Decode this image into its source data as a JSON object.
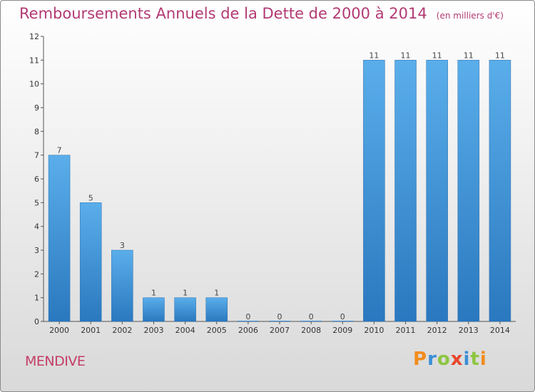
{
  "chart_data": {
    "type": "bar",
    "title": "Remboursements Annuels de la Dette de 2000 à 2014",
    "unit_note": "(en milliers d'€)",
    "categories": [
      "2000",
      "2001",
      "2002",
      "2003",
      "2004",
      "2005",
      "2006",
      "2007",
      "2008",
      "2009",
      "2010",
      "2011",
      "2012",
      "2013",
      "2014"
    ],
    "values": [
      7,
      5,
      3,
      1,
      1,
      1,
      0,
      0,
      0,
      0,
      11,
      11,
      11,
      11,
      11
    ],
    "xlabel": "",
    "ylabel": "",
    "ylim": [
      0,
      12
    ],
    "yticks": [
      0,
      1,
      2,
      3,
      4,
      5,
      6,
      7,
      8,
      9,
      10,
      11,
      12
    ],
    "grid": false,
    "bar_color": "#3a8fd6"
  },
  "location": "MENDIVE",
  "brand": {
    "letters": [
      "P",
      "r",
      "o",
      "x",
      "i",
      "t",
      "i"
    ],
    "colors": [
      "#f28c1c",
      "#3a8fd6",
      "#8cc63f",
      "#e8452c",
      "#3a8fd6",
      "#8cc63f",
      "#f28c1c"
    ]
  }
}
